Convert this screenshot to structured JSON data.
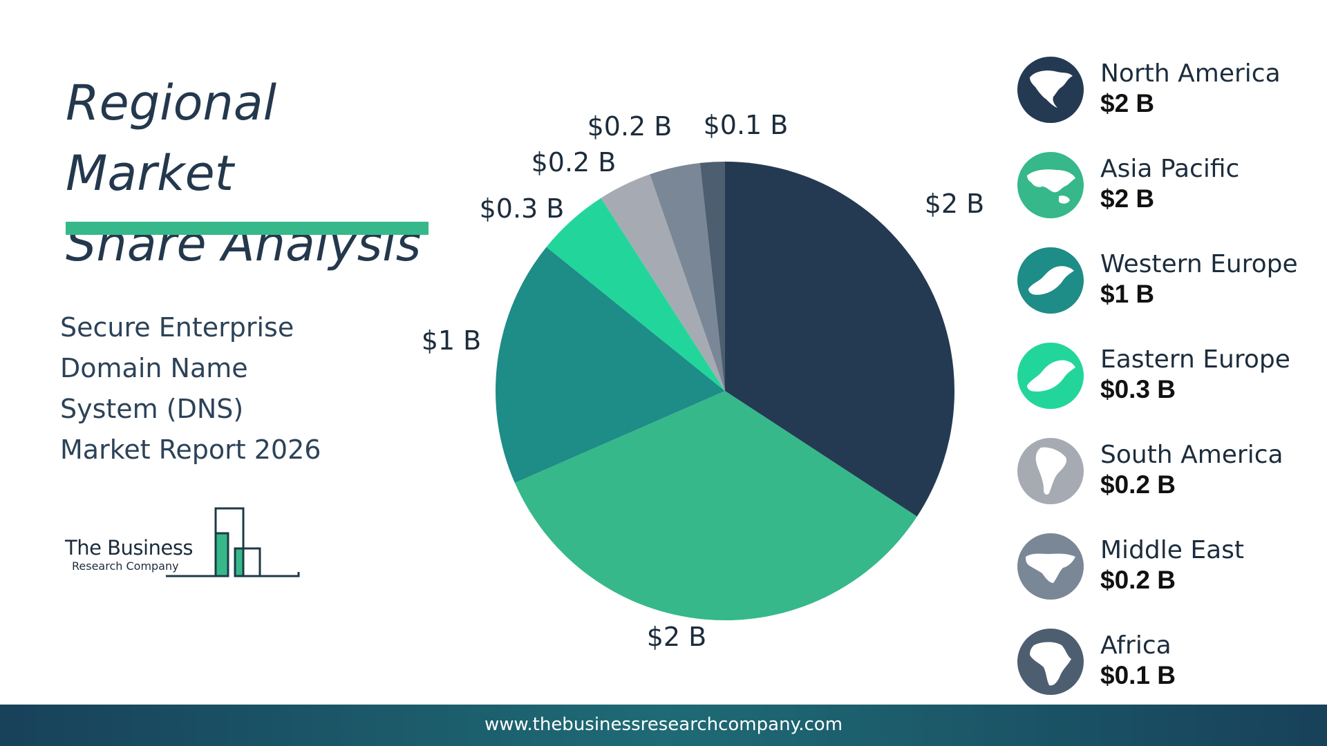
{
  "title": {
    "line1": "Regional Market",
    "line2": "Share Analysis"
  },
  "subtitle": {
    "line1": "Secure Enterprise",
    "line2": "Domain Name",
    "line3": "System (DNS)",
    "line4": "Market Report 2026"
  },
  "logo": {
    "line1": "The Business",
    "line2": "Research Company"
  },
  "footer": {
    "url": "www.thebusinessresearchcompany.com"
  },
  "colors": {
    "title_bar": "#36b88a",
    "north_america": "#243a52",
    "asia_pacific": "#36b88a",
    "western_europe": "#1e8c87",
    "eastern_europe": "#22d69b",
    "south_america": "#a6abb3",
    "middle_east": "#7a8796",
    "africa": "#4d5e70"
  },
  "chart_data": {
    "type": "pie",
    "categories": [
      "North America",
      "Asia Pacific",
      "Western Europe",
      "Eastern Europe",
      "South America",
      "Middle East",
      "Africa"
    ],
    "values": [
      2,
      2,
      1,
      0.3,
      0.2,
      0.2,
      0.1
    ],
    "slice_labels": [
      "$2 B",
      "$2 B",
      "$1 B",
      "$0.3 B",
      "$0.2 B",
      "$0.2 B",
      "$0.1 B"
    ],
    "legend_placement": "right"
  },
  "legend": [
    {
      "name": "North America",
      "value": "$2 B",
      "icon": "north-america-map-icon",
      "color": "#243a52"
    },
    {
      "name": "Asia Pacific",
      "value": "$2 B",
      "icon": "asia-pacific-map-icon",
      "color": "#36b88a"
    },
    {
      "name": "Western Europe",
      "value": "$1 B",
      "icon": "western-europe-map-icon",
      "color": "#1e8c87"
    },
    {
      "name": "Eastern Europe",
      "value": "$0.3 B",
      "icon": "eastern-europe-map-icon",
      "color": "#22d69b"
    },
    {
      "name": "South America",
      "value": "$0.2 B",
      "icon": "south-america-map-icon",
      "color": "#a6abb3"
    },
    {
      "name": "Middle East",
      "value": "$0.2 B",
      "icon": "middle-east-map-icon",
      "color": "#7a8796"
    },
    {
      "name": "Africa",
      "value": "$0.1 B",
      "icon": "africa-map-icon",
      "color": "#4d5e70"
    }
  ]
}
